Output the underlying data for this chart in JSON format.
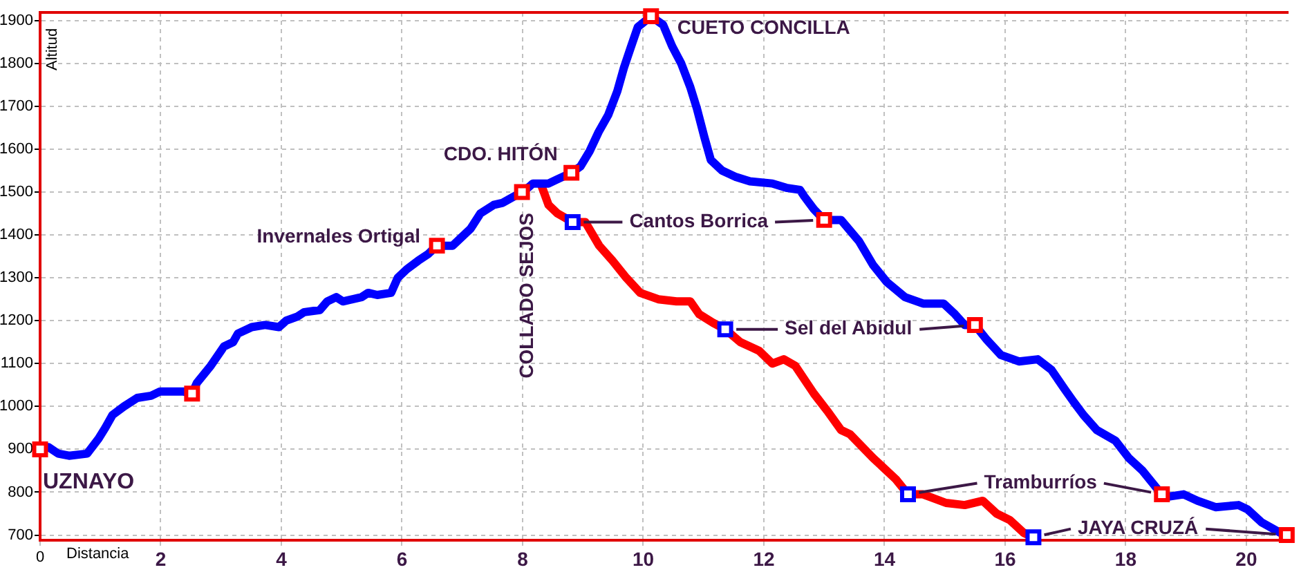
{
  "chart_data": {
    "type": "line",
    "xlabel": "Distancia",
    "ylabel": "Altitud",
    "xlim": [
      0,
      20.7
    ],
    "ylim": [
      688,
      1919
    ],
    "xticks": [
      0,
      2,
      4,
      6,
      8,
      10,
      12,
      14,
      16,
      18,
      20
    ],
    "yticks": [
      700,
      800,
      900,
      1000,
      1100,
      1200,
      1300,
      1400,
      1500,
      1600,
      1700,
      1800,
      1900
    ],
    "grid": true,
    "series": [
      {
        "color": "#0000ff",
        "marker": "none",
        "x": [
          0,
          0.14,
          0.3,
          0.48,
          0.78,
          0.97,
          1.08,
          1.2,
          1.39,
          1.61,
          1.84,
          1.99,
          2.37,
          2.52,
          2.6,
          2.83,
          3.05,
          3.2,
          3.28,
          3.51,
          3.73,
          3.96,
          4.08,
          4.27,
          4.38,
          4.64,
          4.76,
          4.91,
          5.02,
          5.33,
          5.44,
          5.59,
          5.82,
          5.93,
          6.08,
          6.27,
          6.43,
          6.58,
          6.84,
          7.14,
          7.3,
          7.52,
          7.67,
          7.86,
          7.99,
          8.09,
          8.17,
          8.43,
          8.58,
          8.81,
          8.96,
          9.11,
          9.26,
          9.42,
          9.57,
          9.68,
          9.8,
          9.91,
          10.13,
          10.33,
          10.48,
          10.63,
          10.78,
          10.89,
          11.01,
          11.12,
          11.31,
          11.54,
          11.77,
          12.14,
          12.37,
          12.6,
          12.67,
          12.83,
          13,
          13.28,
          13.43,
          13.58,
          13.81,
          14.04,
          14.34,
          14.64,
          14.98,
          15.17,
          15.33,
          15.5,
          15.7,
          15.93,
          16.23,
          16.54,
          16.77,
          16.99,
          17.14,
          17.3,
          17.52,
          17.83,
          18.05,
          18.28,
          18.51,
          18.6,
          18.73,
          18.96,
          19.19,
          19.49,
          19.87,
          20.02,
          20.25,
          20.63,
          20.67
        ],
        "values": [
          900,
          905,
          890,
          885,
          890,
          925,
          950,
          980,
          1000,
          1020,
          1025,
          1035,
          1035,
          1030,
          1055,
          1095,
          1140,
          1150,
          1170,
          1185,
          1190,
          1185,
          1200,
          1210,
          1220,
          1225,
          1245,
          1255,
          1245,
          1255,
          1265,
          1260,
          1265,
          1300,
          1320,
          1340,
          1355,
          1375,
          1375,
          1415,
          1450,
          1470,
          1475,
          1490,
          1500,
          1510,
          1520,
          1520,
          1530,
          1545,
          1560,
          1595,
          1640,
          1680,
          1735,
          1790,
          1840,
          1885,
          1910,
          1890,
          1840,
          1800,
          1745,
          1695,
          1630,
          1575,
          1550,
          1535,
          1525,
          1520,
          1510,
          1505,
          1490,
          1460,
          1435,
          1435,
          1410,
          1385,
          1330,
          1290,
          1255,
          1240,
          1240,
          1215,
          1190,
          1190,
          1155,
          1120,
          1105,
          1110,
          1085,
          1040,
          1010,
          980,
          945,
          920,
          880,
          850,
          810,
          795,
          790,
          795,
          780,
          765,
          770,
          760,
          730,
          700,
          700
        ]
      },
      {
        "color": "#ff0000",
        "marker": "none",
        "x": [
          8.3,
          8.43,
          8.58,
          8.83,
          9.04,
          9.27,
          9.49,
          9.72,
          9.95,
          10.25,
          10.55,
          10.78,
          10.93,
          11.16,
          11.36,
          11.61,
          11.92,
          12.14,
          12.33,
          12.52,
          12.83,
          13.05,
          13.28,
          13.43,
          13.81,
          14.19,
          14.39,
          14.64,
          15.02,
          15.33,
          15.63,
          15.86,
          16.08,
          16.31,
          16.47
        ],
        "values": [
          1520,
          1470,
          1450,
          1430,
          1430,
          1375,
          1340,
          1300,
          1265,
          1250,
          1245,
          1245,
          1215,
          1195,
          1180,
          1150,
          1130,
          1100,
          1110,
          1095,
          1030,
          990,
          945,
          935,
          880,
          830,
          795,
          795,
          775,
          770,
          780,
          750,
          735,
          705,
          695
        ]
      },
      {
        "type": "scatter",
        "color": "#ff0000",
        "marker": "square",
        "x": [
          0,
          2.52,
          6.58,
          7.99,
          8.81,
          10.13,
          13,
          15.5,
          18.6,
          20.67
        ],
        "values": [
          900,
          1030,
          1375,
          1500,
          1545,
          1910,
          1435,
          1190,
          795,
          700
        ]
      },
      {
        "type": "scatter",
        "color": "#0000ff",
        "marker": "square",
        "x": [
          8.83,
          11.36,
          14.39,
          16.47
        ],
        "values": [
          1430,
          1180,
          795,
          695
        ]
      }
    ],
    "annotations": [
      {
        "text": "UZNAYO",
        "x": 0,
        "y": 900
      },
      {
        "text": "Invernales Ortigal",
        "x": 6.58,
        "y": 1375
      },
      {
        "text": "CDO. HITÓN",
        "x": 8.81,
        "y": 1545
      },
      {
        "text": "CUETO CONCILLA",
        "x": 10.13,
        "y": 1910
      },
      {
        "text": "COLLADO SEJOS",
        "x": 7.99,
        "y": 1500
      },
      {
        "text": "Cantos Borrica",
        "x": 8.83,
        "y": 1430
      },
      {
        "text": "Sel del Abidul",
        "x": 11.36,
        "y": 1180
      },
      {
        "text": "Tramburríos",
        "x": 14.39,
        "y": 795
      },
      {
        "text": "JAYA CRUZÁ",
        "x": 16.47,
        "y": 695
      }
    ]
  }
}
